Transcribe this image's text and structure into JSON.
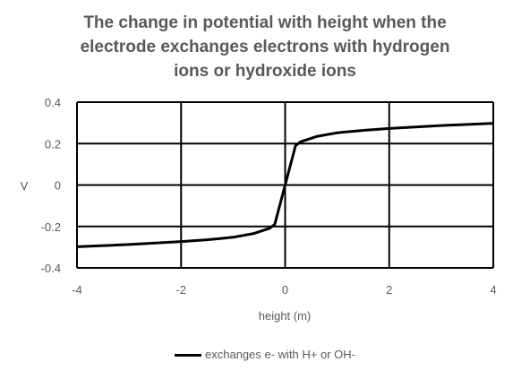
{
  "chart_data": {
    "type": "line",
    "title_lines": [
      "The change in potential with height when the",
      "electrode exchanges electrons with hydrogen",
      "ions or hydroxide ions"
    ],
    "xlabel": "height (m)",
    "ylabel": "V",
    "xlim": [
      -4,
      4
    ],
    "ylim": [
      -0.4,
      0.4
    ],
    "x_ticks": [
      -4,
      -2,
      0,
      2,
      4
    ],
    "x_tick_labels": [
      "-4",
      "-2",
      "0",
      "2",
      "4"
    ],
    "y_ticks": [
      0.4,
      0.2,
      0,
      -0.2,
      -0.4
    ],
    "y_tick_labels": [
      "0.4",
      "0.2",
      "0",
      "-0.2",
      "-0.4"
    ],
    "grid": true,
    "legend_position": "bottom",
    "series": [
      {
        "name": "exchanges e- with H+ or OH-",
        "color": "#000000",
        "x": [
          -4,
          -3,
          -2,
          -1.5,
          -1,
          -0.6,
          -0.3,
          -0.2,
          0,
          0.2,
          0.3,
          0.6,
          1,
          1.5,
          2,
          3,
          4
        ],
        "y": [
          -0.298,
          -0.287,
          -0.273,
          -0.264,
          -0.252,
          -0.234,
          -0.209,
          -0.19,
          0,
          0.19,
          0.209,
          0.234,
          0.252,
          0.264,
          0.273,
          0.287,
          0.298
        ]
      }
    ]
  }
}
